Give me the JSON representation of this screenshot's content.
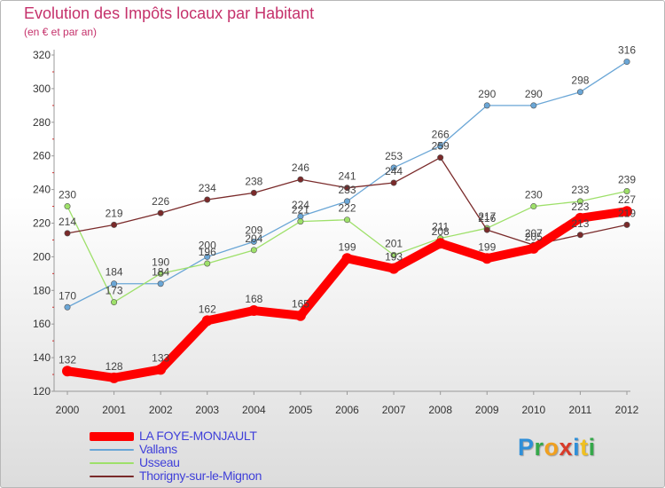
{
  "chart_data": {
    "type": "line",
    "title": "Evolution des Impôts locaux par Habitant",
    "subtitle": "(en € et par an)",
    "x": [
      "2000",
      "2001",
      "2002",
      "2003",
      "2004",
      "2005",
      "2006",
      "2007",
      "2008",
      "2009",
      "2010",
      "2011",
      "2012"
    ],
    "ylim": [
      120,
      320
    ],
    "yticks": [
      120,
      140,
      160,
      180,
      200,
      220,
      240,
      260,
      280,
      300,
      320
    ],
    "grid": false,
    "legend_position": "bottom-left",
    "series": [
      {
        "name": "LA FOYE-MONJAULT",
        "color": "#ff0000",
        "emphasis": true,
        "values": [
          132,
          128,
          133,
          162,
          168,
          165,
          199,
          193,
          208,
          199,
          205,
          223,
          227
        ]
      },
      {
        "name": "Vallans",
        "color": "#6aa6d6",
        "emphasis": false,
        "values": [
          170,
          184,
          184,
          200,
          209,
          224,
          233,
          253,
          266,
          290,
          290,
          298,
          316
        ]
      },
      {
        "name": "Usseau",
        "color": "#9ee06a",
        "emphasis": false,
        "values": [
          230,
          173,
          190,
          196,
          204,
          221,
          222,
          201,
          211,
          217,
          230,
          233,
          239
        ]
      },
      {
        "name": "Thorigny-sur-le-Mignon",
        "color": "#7a2a2a",
        "emphasis": false,
        "values": [
          214,
          219,
          226,
          234,
          238,
          246,
          241,
          244,
          259,
          216,
          207,
          213,
          219
        ]
      }
    ]
  },
  "logo": {
    "letters": [
      {
        "ch": "P",
        "color": "#2f8fd8"
      },
      {
        "ch": "r",
        "color": "#35a84a"
      },
      {
        "ch": "o",
        "color": "#f0a020"
      },
      {
        "ch": "x",
        "color": "#d83b2a"
      },
      {
        "ch": "i",
        "color": "#2f8fd8"
      },
      {
        "ch": "t",
        "color": "#f0c020"
      },
      {
        "ch": "i",
        "color": "#35a84a"
      }
    ]
  }
}
